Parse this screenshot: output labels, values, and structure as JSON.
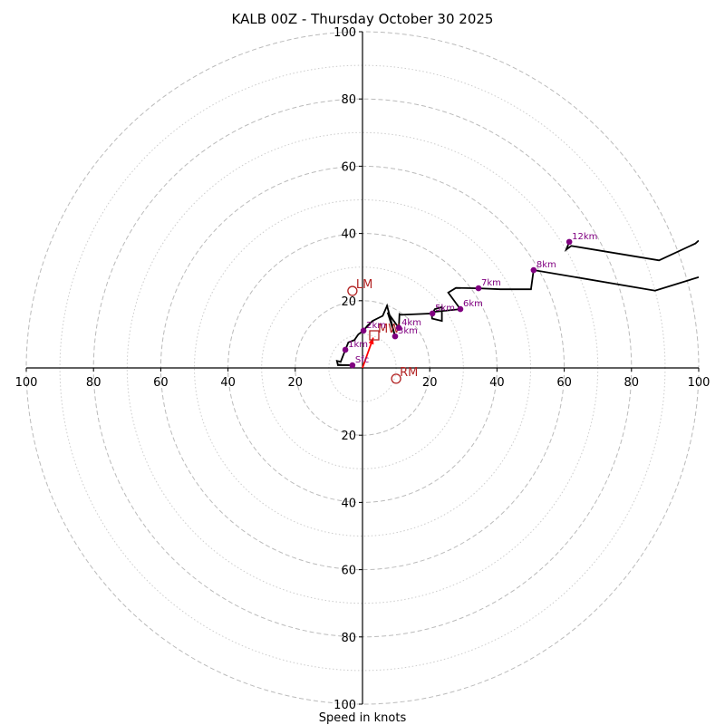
{
  "chart_data": {
    "type": "hodograph",
    "title": "KALB 00Z - Thursday October 30 2025",
    "xlabel": "Speed in knots",
    "ylabel": "",
    "units": "knots",
    "range": [
      -100,
      100
    ],
    "rings_major": [
      20,
      40,
      60,
      80,
      100
    ],
    "rings_minor": [
      10,
      30,
      50,
      70,
      90
    ],
    "x_ticks": [
      -100,
      -80,
      -60,
      -40,
      -20,
      20,
      40,
      60,
      80,
      100
    ],
    "x_tick_labels": [
      "100",
      "80",
      "60",
      "40",
      "20",
      "20",
      "40",
      "60",
      "80",
      "100"
    ],
    "y_ticks": [
      100,
      80,
      60,
      40,
      20,
      -20,
      -40,
      -60,
      -80,
      -100
    ],
    "y_tick_labels": [
      "100",
      "80",
      "60",
      "40",
      "20",
      "20",
      "40",
      "60",
      "80",
      "100"
    ],
    "grid": true,
    "colors": {
      "trace": "#000000",
      "markers": "#800080",
      "motion": "#b22222",
      "shear_vector": "#ff0000",
      "grid": "#bbbbbb"
    },
    "trace": [
      [
        -7.5,
        1.0
      ],
      [
        -6.2,
        0.9
      ],
      [
        -3.0,
        0.8
      ],
      [
        -7.3,
        0.8
      ],
      [
        -7.6,
        2.1
      ],
      [
        -6.5,
        1.8
      ],
      [
        -5.6,
        4.1
      ],
      [
        -5.1,
        5.4
      ],
      [
        -4.2,
        7.6
      ],
      [
        -2.4,
        8.3
      ],
      [
        -2.0,
        8.9
      ],
      [
        -1.2,
        10.0
      ],
      [
        0.3,
        11.1
      ],
      [
        1.5,
        12.6
      ],
      [
        3.0,
        14.0
      ],
      [
        6.0,
        15.5
      ],
      [
        7.3,
        18.5
      ],
      [
        9.7,
        9.4
      ],
      [
        7.5,
        16.5
      ],
      [
        10.8,
        11.9
      ],
      [
        10.8,
        11.9
      ],
      [
        11.0,
        16.0
      ],
      [
        11.5,
        15.8
      ],
      [
        20.8,
        16.2
      ],
      [
        21.5,
        17.5
      ],
      [
        23.6,
        18.1
      ],
      [
        23.6,
        14.0
      ],
      [
        20.7,
        14.7
      ],
      [
        20.6,
        16.6
      ],
      [
        29.1,
        17.5
      ],
      [
        25.5,
        22.4
      ],
      [
        27.8,
        23.8
      ],
      [
        34.5,
        23.7
      ],
      [
        41.0,
        23.4
      ],
      [
        50.1,
        23.4
      ],
      [
        50.9,
        29.1
      ],
      [
        87.0,
        23.0
      ],
      [
        100.0,
        27.0
      ]
    ],
    "trace_upper": [
      [
        61.5,
        37.5
      ],
      [
        60.6,
        35.2
      ],
      [
        62.1,
        36.3
      ],
      [
        88.2,
        32.0
      ],
      [
        99.0,
        37.0
      ],
      [
        100.0,
        37.9
      ]
    ],
    "height_markers": [
      {
        "label": "Sfc",
        "u": -3.0,
        "v": 0.8
      },
      {
        "label": "1km",
        "u": -5.1,
        "v": 5.4
      },
      {
        "label": "2km",
        "u": 0.3,
        "v": 11.1
      },
      {
        "label": "3km",
        "u": 9.7,
        "v": 9.4
      },
      {
        "label": "4km",
        "u": 10.8,
        "v": 11.9
      },
      {
        "label": "5km",
        "u": 20.8,
        "v": 16.2
      },
      {
        "label": "6km",
        "u": 29.1,
        "v": 17.5
      },
      {
        "label": "7km",
        "u": 34.5,
        "v": 23.7
      },
      {
        "label": "8km",
        "u": 50.9,
        "v": 29.1
      },
      {
        "label": "12km",
        "u": 61.5,
        "v": 37.5
      }
    ],
    "storm_motions": [
      {
        "label": "LM",
        "u": -3.0,
        "v": 22.9,
        "marker": "circle"
      },
      {
        "label": "RM",
        "u": 10.0,
        "v": -3.2,
        "marker": "circle"
      },
      {
        "label": "MW",
        "u": 3.5,
        "v": 9.7,
        "marker": "square"
      }
    ],
    "shear_vector": {
      "from": [
        0,
        0
      ],
      "to": [
        3.2,
        9.0
      ]
    }
  }
}
